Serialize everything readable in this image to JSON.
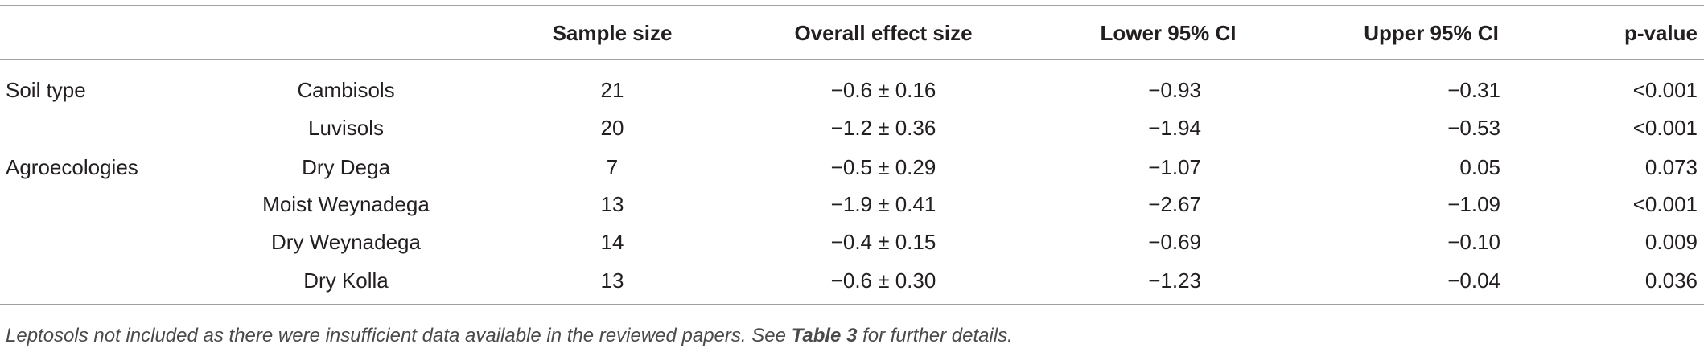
{
  "table": {
    "header": [
      "Sample size",
      "Overall effect size",
      "Lower 95% CI",
      "Upper 95% CI",
      "p-value"
    ],
    "groups": [
      {
        "label": "Soil type",
        "rows": [
          [
            "Cambisols",
            "21",
            "−0.6 ± 0.16",
            "−0.93",
            "−0.31",
            "<0.001"
          ],
          [
            "Luvisols",
            "20",
            "−1.2 ± 0.36",
            "−1.94",
            "−0.53",
            "<0.001"
          ]
        ]
      },
      {
        "label": "Agroecologies",
        "rows": [
          [
            "Dry Dega",
            "7",
            "−0.5 ± 0.29",
            "−1.07",
            "0.05",
            "0.073"
          ],
          [
            "Moist Weynadega",
            "13",
            "−1.9 ± 0.41",
            "−2.67",
            "−1.09",
            "<0.001"
          ],
          [
            "Dry Weynadega",
            "14",
            "−0.4 ± 0.15",
            "−0.69",
            "−0.10",
            "0.009"
          ],
          [
            "Dry Kolla",
            "13",
            "−0.6 ± 0.30",
            "−1.23",
            "−0.04",
            "0.036"
          ]
        ]
      }
    ],
    "footnote": {
      "before": "Leptosols not included as there were insufficient data available in the reviewed papers. See ",
      "reference": "Table 3",
      "after": " for further details."
    }
  }
}
